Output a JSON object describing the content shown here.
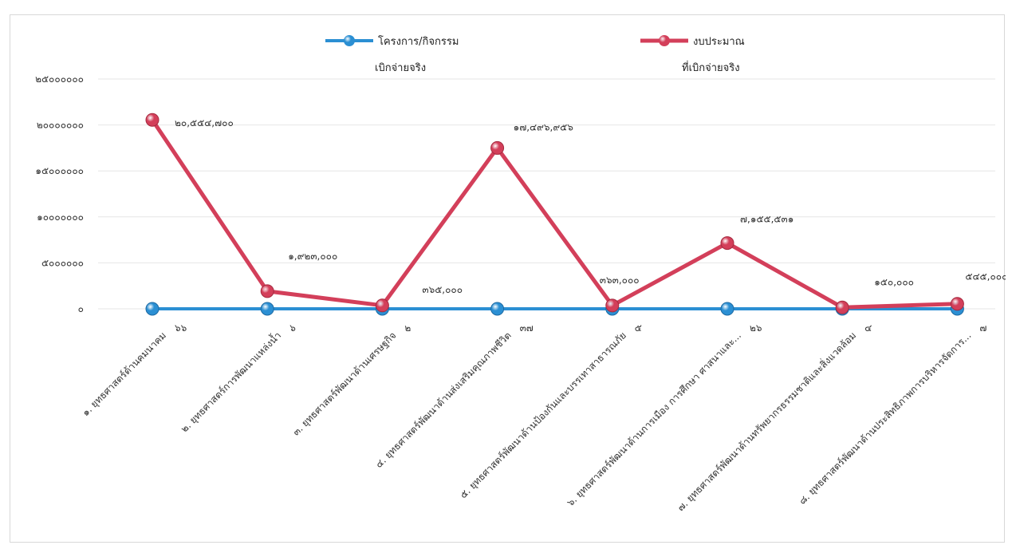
{
  "chart_data": {
    "type": "line",
    "ylim": [
      0,
      25000000
    ],
    "yticks": [
      {
        "value": 25000000,
        "label": "๒๕๐๐๐๐๐๐"
      },
      {
        "value": 20000000,
        "label": "๒๐๐๐๐๐๐๐"
      },
      {
        "value": 15000000,
        "label": "๑๕๐๐๐๐๐๐"
      },
      {
        "value": 10000000,
        "label": "๑๐๐๐๐๐๐๐"
      },
      {
        "value": 5000000,
        "label": "๕๐๐๐๐๐๐"
      },
      {
        "value": 0,
        "label": "๐"
      }
    ],
    "categories": [
      "๑. ยุทธศาสตร์ด้านคมนาคม",
      "๒. ยุทธศาสตร์การพัฒนาแหล่งน้ำ",
      "๓. ยุทธศาสตร์พัฒนาด้านเศรษฐกิจ",
      "๔. ยุทธศาสตร์พัฒนาด้านส่งเสริมคุณภาพชีวิต",
      "๕. ยุทธศาสตร์พัฒนาด้านป้องกันและบรรเทาสาธารณภัย",
      "๖. ยุทธศาสตร์พัฒนาด้านการเมือง การศึกษา ศาสนาและ...",
      "๗. ยุทธศาสตร์พัฒนาด้านทรัพยากรธรรมชาติและสิ่งแวดล้อม",
      "๘. ยุทธศาสตร์พัฒนาด้านประสิทธิภาพการบริหารจัดการ..."
    ],
    "legend_position": "top",
    "series": [
      {
        "name": "โครงการ/กิจกรรม เบิกจ่ายจริง",
        "name_lines": [
          "โครงการ/กิจกรรม",
          "เบิกจ่ายจริง"
        ],
        "color": "#2b8fd3",
        "values": [
          66,
          6,
          2,
          37,
          5,
          26,
          4,
          7
        ],
        "value_labels": [
          "๖๖",
          "๖",
          "๒",
          "๓๗",
          "๕",
          "๒๖",
          "๔",
          "๗"
        ]
      },
      {
        "name": "งบประมาณ ที่เบิกจ่ายจริง",
        "name_lines": [
          "งบประมาณ",
          "ที่เบิกจ่ายจริง"
        ],
        "color": "#d33f5a",
        "values": [
          20554700,
          1923000,
          365000,
          17496956,
          363000,
          7155531,
          150000,
          545000
        ],
        "value_labels": [
          "๒๐,๕๕๔,๗๐๐",
          "๑,๙๒๓,๐๐๐",
          "๓๖๕,๐๐๐",
          "๑๗,๔๙๖,๙๕๖",
          "๓๖๓,๐๐๐",
          "๗,๑๕๕,๕๓๑",
          "๑๕๐,๐๐๐",
          "๕๔๕,๐๐๐"
        ]
      }
    ]
  }
}
